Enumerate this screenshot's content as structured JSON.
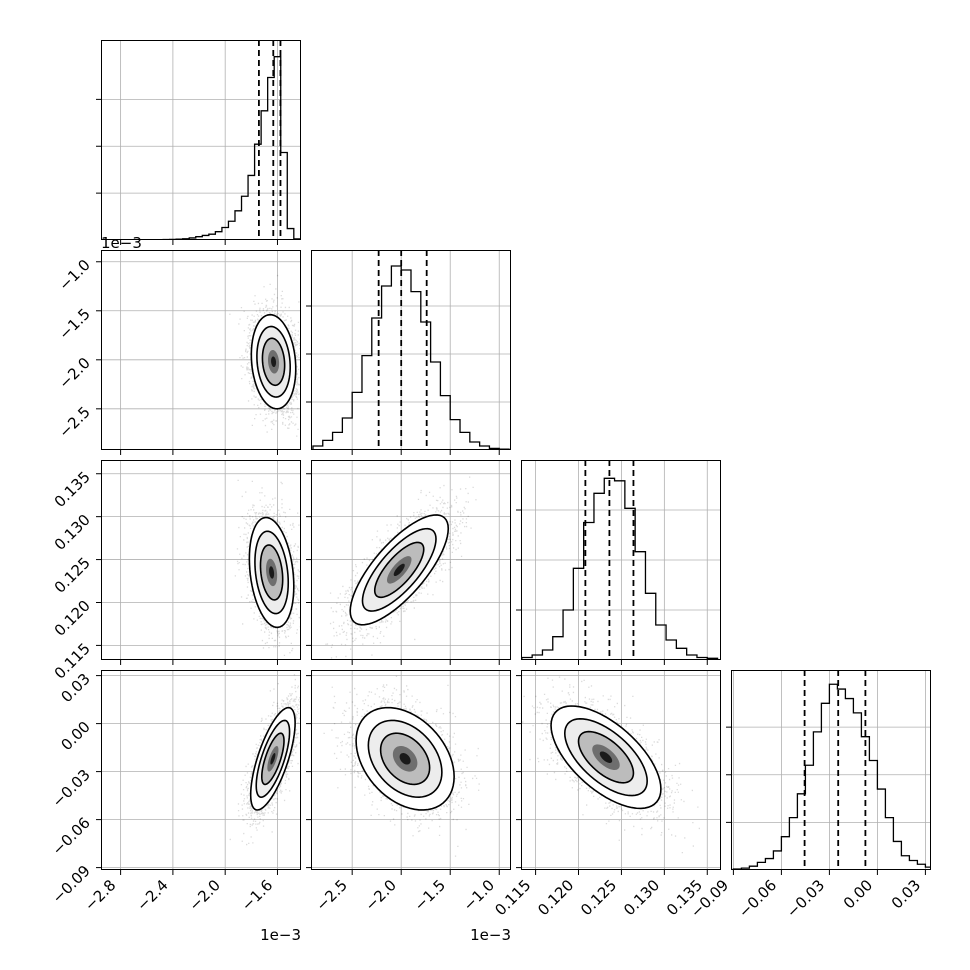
{
  "chart_data": {
    "type": "corner",
    "grid": true,
    "parameters": [
      {
        "range": [
          -2.95,
          -1.42
        ],
        "ticks": [
          -2.8,
          -2.4,
          -2.0,
          -1.6
        ],
        "tick_labels": [
          "−2.8",
          "−2.4",
          "−2.0",
          "−1.6"
        ],
        "offset_label": "1e−3",
        "quantiles": [
          -1.742,
          -1.632,
          -1.577
        ],
        "histogram": {
          "bin_centers": [
            -2.9,
            -2.85,
            -2.8,
            -2.75,
            -2.7,
            -2.65,
            -2.6,
            -2.55,
            -2.5,
            -2.45,
            -2.4,
            -2.35,
            -2.3,
            -2.25,
            -2.2,
            -2.15,
            -2.1,
            -2.05,
            -2.0,
            -1.95,
            -1.9,
            -1.85,
            -1.8,
            -1.75,
            -1.7,
            -1.65,
            -1.6,
            -1.55,
            -1.5,
            -1.45
          ],
          "counts": [
            0,
            0,
            0,
            0,
            0,
            0,
            0,
            0,
            0,
            2,
            3,
            4,
            6,
            10,
            16,
            22,
            28,
            40,
            60,
            90,
            140,
            210,
            310,
            460,
            620,
            780,
            880,
            420,
            55,
            5
          ]
        },
        "hist_ylim": [
          0,
          960
        ],
        "hist_yticks": [
          225,
          450,
          675
        ]
      },
      {
        "range": [
          -2.92,
          -0.88
        ],
        "ticks": [
          -2.5,
          -2.0,
          -1.5,
          -1.0
        ],
        "tick_labels": [
          "−2.5",
          "−2.0",
          "−1.5",
          "−1.0"
        ],
        "offset_label": "1e−3",
        "quantiles": [
          -2.23,
          -2.0,
          -1.74
        ],
        "histogram": {
          "bin_centers": [
            -2.85,
            -2.75,
            -2.65,
            -2.55,
            -2.45,
            -2.35,
            -2.25,
            -2.15,
            -2.05,
            -1.95,
            -1.85,
            -1.75,
            -1.65,
            -1.55,
            -1.45,
            -1.35,
            -1.25,
            -1.15,
            -1.05,
            -0.95
          ],
          "counts": [
            5,
            12,
            22,
            40,
            72,
            118,
            165,
            205,
            230,
            225,
            198,
            160,
            110,
            68,
            38,
            22,
            10,
            5,
            2,
            1
          ]
        },
        "hist_ylim": [
          0,
          250
        ],
        "hist_yticks": [
          60,
          120,
          180
        ]
      },
      {
        "range": [
          0.1133,
          0.1366
        ],
        "ticks": [
          0.115,
          0.12,
          0.125,
          0.13,
          0.135
        ],
        "tick_labels": [
          "0.115",
          "0.120",
          "0.125",
          "0.130",
          "0.135"
        ],
        "offset_label": "",
        "quantiles": [
          0.1208,
          0.1236,
          0.1264
        ],
        "histogram": {
          "bin_centers": [
            0.114,
            0.1152,
            0.1164,
            0.1176,
            0.1188,
            0.12,
            0.1212,
            0.1224,
            0.1236,
            0.1248,
            0.126,
            0.1272,
            0.1284,
            0.1296,
            0.1308,
            0.132,
            0.1332,
            0.1344,
            0.1356
          ],
          "counts": [
            3,
            6,
            12,
            28,
            60,
            110,
            165,
            200,
            218,
            215,
            182,
            130,
            80,
            42,
            24,
            14,
            6,
            3,
            2
          ]
        },
        "hist_ylim": [
          0,
          240
        ],
        "hist_yticks": [
          60,
          120,
          180
        ]
      },
      {
        "range": [
          -0.0915,
          0.0335
        ],
        "ticks": [
          -0.09,
          -0.06,
          -0.03,
          0.0,
          0.03
        ],
        "tick_labels": [
          "−0.09",
          "−0.06",
          "−0.03",
          "0.00",
          "0.03"
        ],
        "offset_label": "",
        "quantiles": [
          -0.0455,
          -0.0245,
          -0.0075
        ],
        "histogram": {
          "bin_centers": [
            -0.0875,
            -0.0825,
            -0.0775,
            -0.0725,
            -0.0675,
            -0.0625,
            -0.0575,
            -0.0525,
            -0.0475,
            -0.0425,
            -0.0375,
            -0.0325,
            -0.0275,
            -0.0225,
            -0.0175,
            -0.0125,
            -0.0075,
            -0.0025,
            0.0025,
            0.0075,
            0.0125,
            0.0175,
            0.0225,
            0.0275,
            0.0325
          ],
          "counts": [
            1,
            2,
            4,
            8,
            12,
            20,
            35,
            55,
            80,
            110,
            145,
            175,
            195,
            190,
            180,
            165,
            140,
            115,
            85,
            55,
            30,
            15,
            10,
            6,
            3
          ]
        },
        "hist_ylim": [
          0,
          210
        ],
        "hist_yticks": [
          50,
          100,
          150
        ]
      }
    ],
    "pairs": [
      {
        "row": 1,
        "col": 0,
        "center": [
          -1.63,
          -2.02
        ],
        "sigma": [
          0.085,
          0.24
        ],
        "rho": -0.15
      },
      {
        "row": 2,
        "col": 0,
        "center": [
          -1.645,
          0.1235
        ],
        "sigma": [
          0.085,
          0.0032
        ],
        "rho": -0.25
      },
      {
        "row": 2,
        "col": 1,
        "center": [
          -2.02,
          0.1238
        ],
        "sigma": [
          0.25,
          0.0032
        ],
        "rho": 0.75
      },
      {
        "row": 3,
        "col": 0,
        "center": [
          -1.635,
          -0.022
        ],
        "sigma": [
          0.085,
          0.016
        ],
        "rho": 0.7
      },
      {
        "row": 3,
        "col": 1,
        "center": [
          -1.96,
          -0.022
        ],
        "sigma": [
          0.25,
          0.016
        ],
        "rho": -0.35
      },
      {
        "row": 3,
        "col": 2,
        "center": [
          0.1232,
          -0.021
        ],
        "sigma": [
          0.0032,
          0.016
        ],
        "rho": -0.62
      }
    ],
    "contour_levels_sigma": [
      0.5,
      1.0,
      1.5,
      2.0
    ],
    "scatter_samples": 3000
  }
}
